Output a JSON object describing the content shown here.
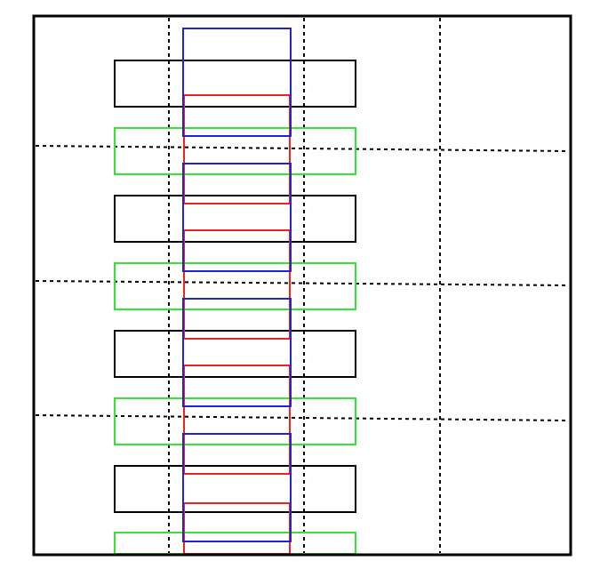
{
  "diagram": {
    "background": "#ffffff",
    "colors": {
      "frame": "#000000",
      "dashed_guides": "#000000",
      "black_boxes": "#000000",
      "green_boxes": "#33e633",
      "blue_boxes": "#2222dd",
      "red_boxes": "#ee2222"
    },
    "counts": {
      "black_boxes": 4,
      "green_boxes": 4,
      "blue_boxes": 4,
      "red_boxes": 4,
      "horizontal_guides": 3,
      "vertical_guides": 3
    }
  }
}
